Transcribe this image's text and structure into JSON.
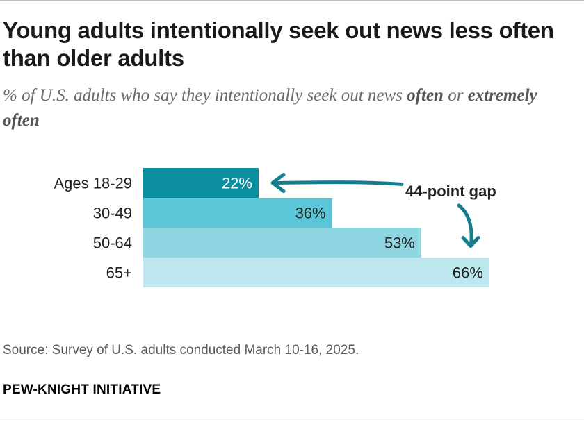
{
  "title": "Young adults intentionally seek out news less often than older adults",
  "subtitle": {
    "prefix": "% of U.S. adults who say they intentionally seek out news ",
    "bold1": "often",
    "middle": " or ",
    "bold2": "extremely often"
  },
  "chart_data": {
    "type": "bar",
    "orientation": "horizontal",
    "categories": [
      "Ages 18-29",
      "30-49",
      "50-64",
      "65+"
    ],
    "values": [
      22,
      36,
      53,
      66
    ],
    "value_labels": [
      "22%",
      "36%",
      "53%",
      "66%"
    ],
    "colors": [
      "#0b8fa0",
      "#5bc6d7",
      "#8fd6e2",
      "#bde6ee"
    ],
    "xlim": [
      0,
      100
    ],
    "grid": false,
    "annotation": "44-point gap",
    "annotation_color": "#147d8e"
  },
  "source": "Source: Survey of U.S. adults conducted March 10-16, 2025.",
  "brand": "PEW-KNIGHT INITIATIVE"
}
